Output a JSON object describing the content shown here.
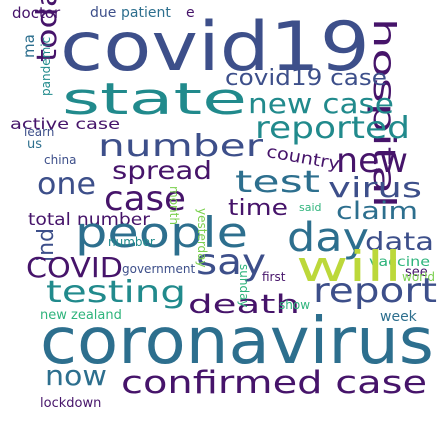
{
  "palette": {
    "purple": "#46146a",
    "indigo": "#3d4f8a",
    "blue": "#2d6f8e",
    "teal": "#218a8c",
    "green": "#2fb47c",
    "lime": "#7bd04f",
    "yellow": "#bcd83a"
  },
  "words": [
    {
      "id": "doctor",
      "text": "doctor",
      "color": "purple"
    },
    {
      "id": "due",
      "text": "due",
      "color": "indigo"
    },
    {
      "id": "patient",
      "text": "patient",
      "color": "blue"
    },
    {
      "id": "e",
      "text": "e",
      "color": "purple"
    },
    {
      "id": "covid19",
      "text": "covid19",
      "color": "indigo"
    },
    {
      "id": "hospital",
      "text": "hospital",
      "color": "purple"
    },
    {
      "id": "today",
      "text": "today",
      "color": "purple"
    },
    {
      "id": "ma",
      "text": "ma",
      "color": "blue"
    },
    {
      "id": "pandemic",
      "text": "pandemic",
      "color": "teal"
    },
    {
      "id": "state",
      "text": "state",
      "color": "teal"
    },
    {
      "id": "covid19-case",
      "text": "covid19 case",
      "color": "indigo"
    },
    {
      "id": "new-case",
      "text": "new case",
      "color": "teal"
    },
    {
      "id": "active-case",
      "text": "active case",
      "color": "purple"
    },
    {
      "id": "reported",
      "text": "reported",
      "color": "teal"
    },
    {
      "id": "learn",
      "text": "learn",
      "color": "indigo"
    },
    {
      "id": "us",
      "text": "us",
      "color": "blue"
    },
    {
      "id": "number-big",
      "text": "number",
      "color": "indigo"
    },
    {
      "id": "country",
      "text": "country",
      "color": "purple"
    },
    {
      "id": "new",
      "text": "new",
      "color": "purple"
    },
    {
      "id": "china",
      "text": "china",
      "color": "indigo"
    },
    {
      "id": "one",
      "text": "one",
      "color": "indigo"
    },
    {
      "id": "spread",
      "text": "spread",
      "color": "purple"
    },
    {
      "id": "test",
      "text": "test",
      "color": "blue"
    },
    {
      "id": "virus",
      "text": "virus",
      "color": "indigo"
    },
    {
      "id": "case",
      "text": "case",
      "color": "purple"
    },
    {
      "id": "time",
      "text": "time",
      "color": "purple"
    },
    {
      "id": "said",
      "text": "said",
      "color": "green"
    },
    {
      "id": "claim",
      "text": "claim",
      "color": "blue"
    },
    {
      "id": "total-number",
      "text": "total number",
      "color": "purple"
    },
    {
      "id": "day",
      "text": "day",
      "color": "blue"
    },
    {
      "id": "data",
      "text": "data",
      "color": "indigo"
    },
    {
      "id": "people",
      "text": "people",
      "color": "blue"
    },
    {
      "id": "vaccine",
      "text": "vaccine",
      "color": "green"
    },
    {
      "id": "see",
      "text": "see",
      "color": "purple"
    },
    {
      "id": "ind",
      "text": "ind",
      "color": "indigo"
    },
    {
      "id": "covid",
      "text": "COVID",
      "color": "purple"
    },
    {
      "id": "government",
      "text": "government",
      "color": "indigo"
    },
    {
      "id": "say",
      "text": "say",
      "color": "indigo"
    },
    {
      "id": "will",
      "text": "will",
      "color": "yellow"
    },
    {
      "id": "world",
      "text": "world",
      "color": "lime"
    },
    {
      "id": "testing",
      "text": "testing",
      "color": "teal"
    },
    {
      "id": "death",
      "text": "death",
      "color": "purple"
    },
    {
      "id": "show",
      "text": "show",
      "color": "green"
    },
    {
      "id": "report",
      "text": "report",
      "color": "indigo"
    },
    {
      "id": "new-zealand",
      "text": "new zealand",
      "color": "green"
    },
    {
      "id": "week",
      "text": "week",
      "color": "blue"
    },
    {
      "id": "coronavirus",
      "text": "coronavirus",
      "color": "blue"
    },
    {
      "id": "now",
      "text": "now",
      "color": "blue"
    },
    {
      "id": "lockdown",
      "text": "lockdown",
      "color": "purple"
    },
    {
      "id": "confirmed-case",
      "text": "confirmed case",
      "color": "purple"
    },
    {
      "id": "yesterday",
      "text": "yesterday",
      "color": "lime"
    },
    {
      "id": "number-small",
      "text": "number",
      "color": "teal"
    },
    {
      "id": "first",
      "text": "first",
      "color": "purple"
    },
    {
      "id": "month",
      "text": "month",
      "color": "lime"
    },
    {
      "id": "sunday",
      "text": "sunday",
      "color": "green"
    }
  ]
}
